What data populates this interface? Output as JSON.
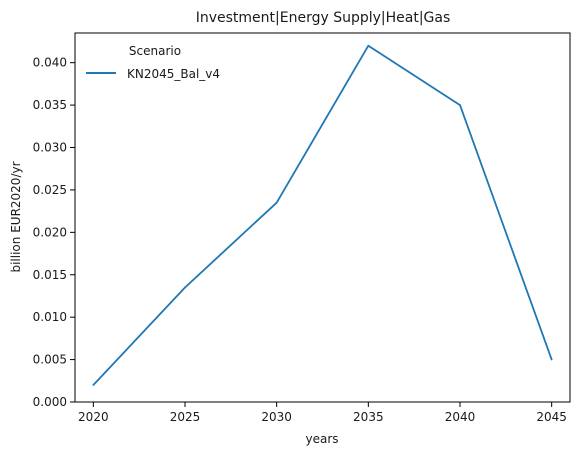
{
  "chart_data": {
    "type": "line",
    "title": "Investment|Energy Supply|Heat|Gas",
    "xlabel": "years",
    "ylabel": "billion EUR2020/yr",
    "x": [
      2020,
      2025,
      2030,
      2035,
      2040,
      2045
    ],
    "xlim": [
      2019,
      2046
    ],
    "ylim": [
      0.0,
      0.0435
    ],
    "x_ticks": [
      "2020",
      "2025",
      "2030",
      "2035",
      "2040",
      "2045"
    ],
    "y_ticks": [
      "0.000",
      "0.005",
      "0.010",
      "0.015",
      "0.020",
      "0.025",
      "0.030",
      "0.035",
      "0.040"
    ],
    "series": [
      {
        "name": "KN2045_Bal_v4",
        "color": "#1f77b4",
        "values": [
          0.002,
          0.0135,
          0.0235,
          0.042,
          0.035,
          0.005
        ]
      }
    ],
    "legend": {
      "title": "Scenario",
      "placement": "top-left"
    },
    "grid": false
  }
}
